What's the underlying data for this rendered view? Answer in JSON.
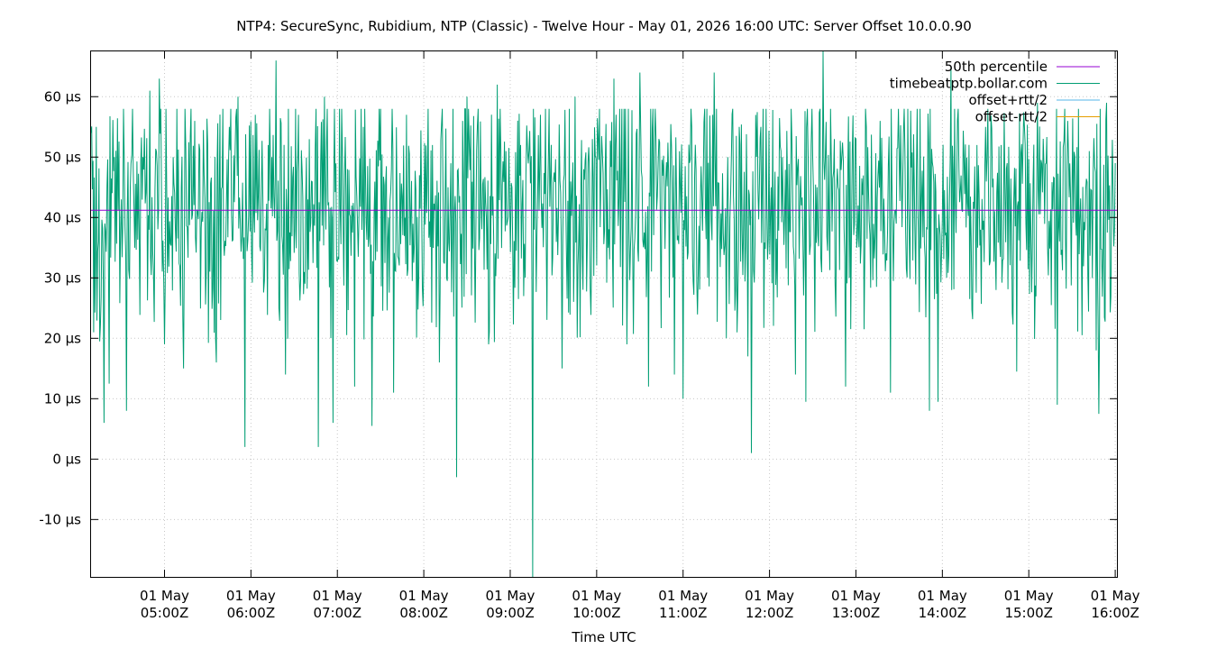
{
  "chart_data": {
    "type": "line",
    "title": "NTP4: SecureSync, Rubidium, NTP (Classic) - Twelve Hour - May 01, 2026 16:00 UTC: Server Offset 10.0.0.90",
    "xlabel": "Time UTC",
    "ylabel": "",
    "x_unit": "hours UTC, May 01 2026",
    "xlim": [
      4.15,
      16.02
    ],
    "ylim": [
      -19.5,
      67.5
    ],
    "grid": true,
    "legend_position": "top-right",
    "x_ticks": [
      {
        "value": 5,
        "label_top": "01 May",
        "label_bottom": "05:00Z"
      },
      {
        "value": 6,
        "label_top": "01 May",
        "label_bottom": "06:00Z"
      },
      {
        "value": 7,
        "label_top": "01 May",
        "label_bottom": "07:00Z"
      },
      {
        "value": 8,
        "label_top": "01 May",
        "label_bottom": "08:00Z"
      },
      {
        "value": 9,
        "label_top": "01 May",
        "label_bottom": "09:00Z"
      },
      {
        "value": 10,
        "label_top": "01 May",
        "label_bottom": "10:00Z"
      },
      {
        "value": 11,
        "label_top": "01 May",
        "label_bottom": "11:00Z"
      },
      {
        "value": 12,
        "label_top": "01 May",
        "label_bottom": "12:00Z"
      },
      {
        "value": 13,
        "label_top": "01 May",
        "label_bottom": "13:00Z"
      },
      {
        "value": 14,
        "label_top": "01 May",
        "label_bottom": "14:00Z"
      },
      {
        "value": 15,
        "label_top": "01 May",
        "label_bottom": "15:00Z"
      },
      {
        "value": 16,
        "label_top": "01 May",
        "label_bottom": "16:00Z"
      }
    ],
    "y_ticks": [
      {
        "value": 60,
        "label": "60 µs"
      },
      {
        "value": 50,
        "label": "50 µs"
      },
      {
        "value": 40,
        "label": "40 µs"
      },
      {
        "value": 30,
        "label": "30 µs"
      },
      {
        "value": 20,
        "label": "20 µs"
      },
      {
        "value": 10,
        "label": "10 µs"
      },
      {
        "value": 0,
        "label": "0 µs"
      },
      {
        "value": -10,
        "label": "-10 µs"
      }
    ],
    "series": [
      {
        "name": "50th percentile",
        "color": "#9400d3",
        "kind": "hline",
        "value": 41.2
      },
      {
        "name": "timebeatptp.bollar.com",
        "color": "#009e73",
        "kind": "line",
        "baseline": 41.2,
        "points": [
          [
            4.15,
            54
          ],
          [
            4.18,
            21
          ],
          [
            4.21,
            55
          ],
          [
            4.25,
            19.5
          ],
          [
            4.3,
            6
          ],
          [
            4.36,
            12.5
          ],
          [
            4.42,
            50
          ],
          [
            4.5,
            43
          ],
          [
            4.56,
            8
          ],
          [
            4.63,
            58
          ],
          [
            4.75,
            50
          ],
          [
            4.83,
            61
          ],
          [
            4.94,
            63
          ],
          [
            5.0,
            19
          ],
          [
            5.1,
            50
          ],
          [
            5.22,
            15
          ],
          [
            5.35,
            56
          ],
          [
            5.5,
            52
          ],
          [
            5.6,
            16
          ],
          [
            5.75,
            55
          ],
          [
            5.85,
            60
          ],
          [
            5.93,
            2
          ],
          [
            6.05,
            57
          ],
          [
            6.12,
            44
          ],
          [
            6.2,
            52
          ],
          [
            6.29,
            66
          ],
          [
            6.4,
            14
          ],
          [
            6.55,
            57
          ],
          [
            6.7,
            46
          ],
          [
            6.78,
            2
          ],
          [
            6.85,
            60
          ],
          [
            6.95,
            6
          ],
          [
            7.05,
            58
          ],
          [
            7.2,
            12
          ],
          [
            7.3,
            55
          ],
          [
            7.4,
            5.5
          ],
          [
            7.5,
            58
          ],
          [
            7.65,
            11
          ],
          [
            7.8,
            57
          ],
          [
            7.95,
            47
          ],
          [
            8.1,
            52
          ],
          [
            8.18,
            16
          ],
          [
            8.28,
            45
          ],
          [
            8.38,
            -3
          ],
          [
            8.45,
            56
          ],
          [
            8.5,
            60
          ],
          [
            8.62,
            55
          ],
          [
            8.75,
            19
          ],
          [
            8.85,
            62
          ],
          [
            8.95,
            51
          ],
          [
            9.02,
            45
          ],
          [
            9.12,
            52
          ],
          [
            9.2,
            51
          ],
          [
            9.26,
            -19.5
          ],
          [
            9.35,
            57
          ],
          [
            9.45,
            58
          ],
          [
            9.6,
            15
          ],
          [
            9.75,
            60
          ],
          [
            9.85,
            48
          ],
          [
            9.95,
            53
          ],
          [
            10.05,
            47
          ],
          [
            10.2,
            63
          ],
          [
            10.35,
            19
          ],
          [
            10.5,
            64
          ],
          [
            10.6,
            12
          ],
          [
            10.72,
            53
          ],
          [
            10.8,
            46
          ],
          [
            10.9,
            14
          ],
          [
            11.0,
            10
          ],
          [
            11.1,
            55
          ],
          [
            11.25,
            58
          ],
          [
            11.36,
            64
          ],
          [
            11.5,
            20
          ],
          [
            11.65,
            55
          ],
          [
            11.75,
            17
          ],
          [
            11.79,
            1
          ],
          [
            11.9,
            55
          ],
          [
            12.02,
            45
          ],
          [
            12.15,
            50
          ],
          [
            12.3,
            14
          ],
          [
            12.42,
            9.5
          ],
          [
            12.5,
            50
          ],
          [
            12.55,
            45
          ],
          [
            12.62,
            68
          ],
          [
            12.75,
            53
          ],
          [
            12.88,
            12
          ],
          [
            13.0,
            53
          ],
          [
            13.12,
            55
          ],
          [
            13.28,
            56
          ],
          [
            13.4,
            11
          ],
          [
            13.55,
            54
          ],
          [
            13.7,
            48
          ],
          [
            13.85,
            8
          ],
          [
            13.95,
            9.5
          ],
          [
            14.1,
            65
          ],
          [
            14.25,
            50
          ],
          [
            14.4,
            52
          ],
          [
            14.5,
            55
          ],
          [
            14.58,
            45
          ],
          [
            14.68,
            52
          ],
          [
            14.75,
            49
          ],
          [
            14.86,
            14.5
          ],
          [
            14.95,
            55
          ],
          [
            15.1,
            59
          ],
          [
            15.2,
            49
          ],
          [
            15.33,
            9
          ],
          [
            15.45,
            56
          ],
          [
            15.55,
            37
          ],
          [
            15.7,
            51
          ],
          [
            15.78,
            18
          ],
          [
            15.81,
            7.5
          ],
          [
            15.9,
            59
          ],
          [
            15.95,
            27
          ],
          [
            16.0,
            49
          ]
        ]
      },
      {
        "name": "offset+rtt/2",
        "color": "#56b4e9",
        "kind": "legend-only"
      },
      {
        "name": "offset-rtt/2",
        "color": "#e69f00",
        "kind": "legend-only"
      }
    ]
  }
}
